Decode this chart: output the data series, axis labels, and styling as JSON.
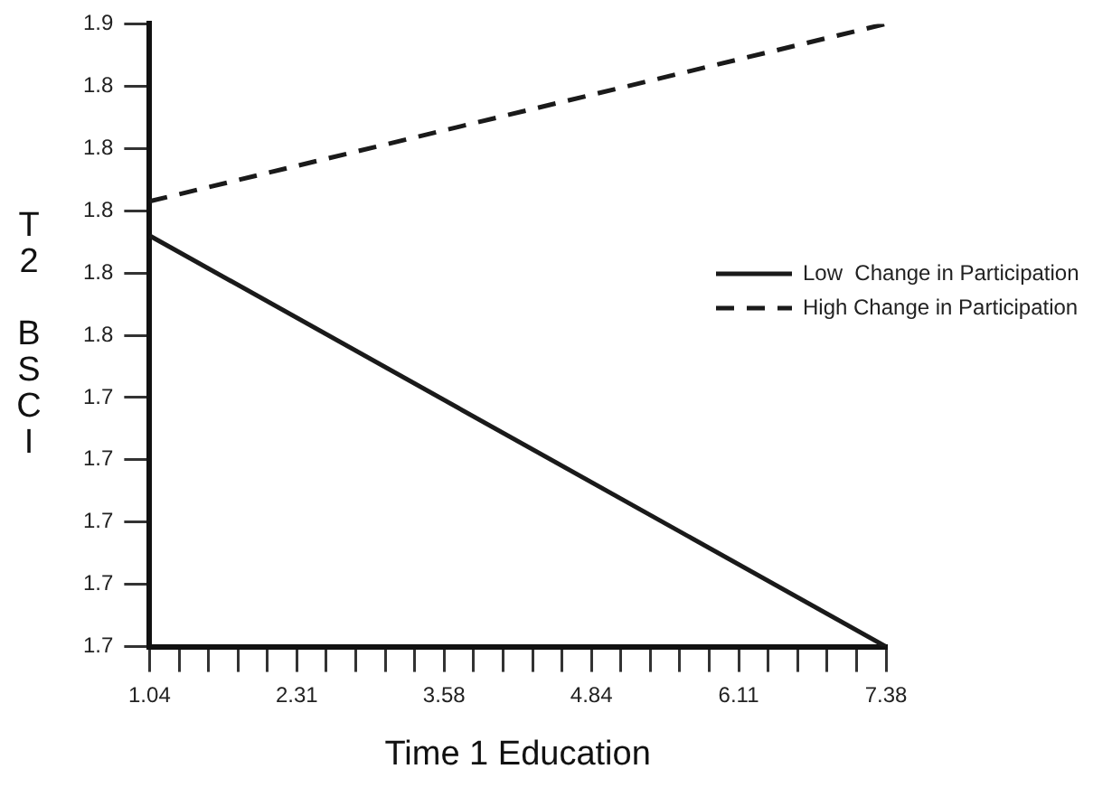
{
  "chart_data": {
    "type": "line",
    "xlabel": "Time 1 Education",
    "ylabel": "T2 BSCI",
    "legend": "right",
    "marker": "none",
    "x": [
      1.04,
      7.38
    ],
    "series": [
      {
        "name": "Low  Change in Participation",
        "color": "#1a1a1a",
        "values": [
          1.792,
          1.66
        ],
        "line_style": "solid"
      },
      {
        "name": "High Change in Participation",
        "color": "#1a1a1a",
        "values": [
          1.803,
          1.86
        ],
        "line_style": "dashed"
      }
    ],
    "xlim": [
      1.04,
      7.38
    ],
    "xticks": [
      1.04,
      {
        "value": 1.294,
        "label": null
      },
      {
        "value": 1.547,
        "label": null
      },
      {
        "value": 1.801,
        "label": null
      },
      {
        "value": 2.054,
        "label": null
      },
      {
        "value": 2.308,
        "label": "2.31"
      },
      {
        "value": 2.562,
        "label": null
      },
      {
        "value": 2.815,
        "label": null
      },
      {
        "value": 3.069,
        "label": null
      },
      {
        "value": 3.322,
        "label": null
      },
      {
        "value": 3.576,
        "label": "3.58"
      },
      {
        "value": 3.83,
        "label": null
      },
      {
        "value": 4.083,
        "label": null
      },
      {
        "value": 4.337,
        "label": null
      },
      {
        "value": 4.59,
        "label": null
      },
      {
        "value": 4.844,
        "label": "4.84"
      },
      {
        "value": 5.098,
        "label": null
      },
      {
        "value": 5.351,
        "label": null
      },
      {
        "value": 5.605,
        "label": null
      },
      {
        "value": 5.858,
        "label": null
      },
      {
        "value": 6.112,
        "label": "6.11"
      },
      {
        "value": 6.366,
        "label": null
      },
      {
        "value": 6.619,
        "label": null
      },
      {
        "value": 6.873,
        "label": null
      },
      {
        "value": 7.126,
        "label": null
      },
      7.38
    ],
    "ylim": [
      1.66,
      1.86
    ],
    "yticks": [
      {
        "value": 1.66,
        "label": "1.7"
      },
      {
        "value": 1.68,
        "label": "1.7"
      },
      {
        "value": 1.7,
        "label": "1.7"
      },
      {
        "value": 1.72,
        "label": "1.7"
      },
      {
        "value": 1.74,
        "label": "1.7"
      },
      {
        "value": 1.76,
        "label": "1.8"
      },
      {
        "value": 1.78,
        "label": "1.8"
      },
      {
        "value": 1.8,
        "label": "1.8"
      },
      {
        "value": 1.82,
        "label": "1.8"
      },
      {
        "value": 1.84,
        "label": "1.8"
      },
      {
        "value": 1.86,
        "label": "1.9"
      }
    ]
  }
}
